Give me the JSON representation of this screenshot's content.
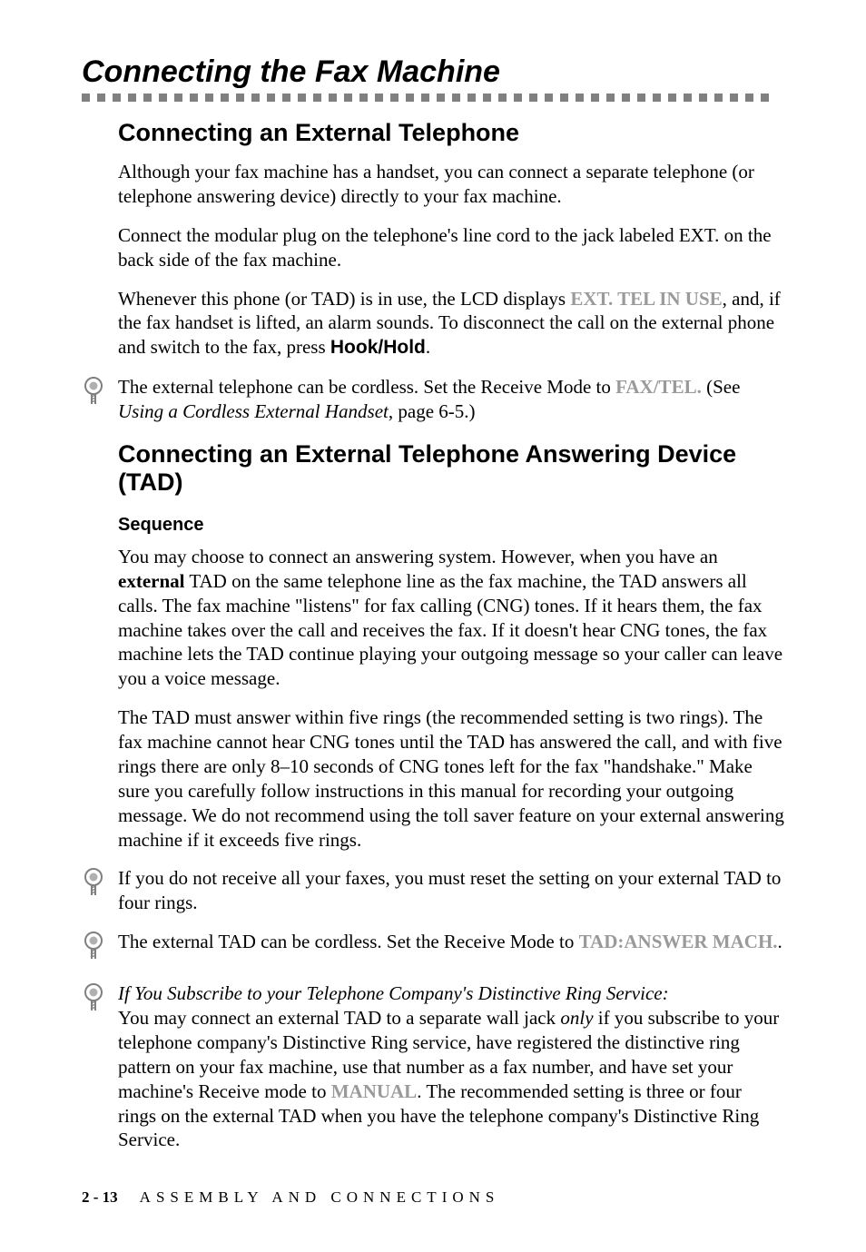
{
  "title": "Connecting the Fax Machine",
  "sections": {
    "ext_tel": {
      "heading": "Connecting an External Telephone",
      "p1": "Although your fax machine has a handset, you can connect a separate telephone (or telephone answering device) directly to your fax machine.",
      "p2": "Connect the modular plug on the telephone's line cord to the jack labeled EXT. on the back side of the fax machine.",
      "p3_a": "Whenever this phone (or TAD) is in use, the LCD displays ",
      "p3_ghost": "EXT. TEL IN USE",
      "p3_b": ", and, if the fax handset is lifted, an alarm sounds. To disconnect the call on the external phone and switch to the fax, press ",
      "p3_bold": "Hook/Hold",
      "p3_c": ".",
      "note_a": "The external telephone can be cordless. Set the Receive Mode to ",
      "note_ghost": "FAX/TEL.",
      "note_b": " (See ",
      "note_i": "Using a Cordless External Handset",
      "note_c": ", page 6-5.)"
    },
    "tad": {
      "heading": "Connecting an External Telephone Answering Device (TAD)",
      "sub": "Sequence",
      "p1_a": "You may choose to connect an answering system. However, when you have an ",
      "p1_bold": "external",
      "p1_b": " TAD on the same telephone line as the fax machine, the TAD answers all calls. The fax machine \"listens\" for fax calling (CNG) tones. If it hears them, the fax machine takes over the call and receives the fax. If it doesn't hear CNG tones, the fax machine lets the TAD continue playing your outgoing message so your caller can leave you a voice message.",
      "p2": "The TAD must answer within five rings (the recommended setting is two rings). The fax machine cannot hear CNG tones until the TAD has answered the call, and with five rings there are only 8–10 seconds of CNG tones left for the fax \"handshake.\"  Make sure you carefully follow instructions in this manual for recording your outgoing message. We do not recommend using the toll saver feature on your external answering machine if it exceeds five rings.",
      "note1": "If you do not receive all your faxes, you must reset the setting on your external TAD to four rings.",
      "note2_a": "The external TAD can be cordless. Set the Receive Mode to ",
      "note2_ghost": "TAD:ANSWER MACH.",
      "note2_b": ".",
      "note3_i": "If You Subscribe to your Telephone Company's Distinctive Ring Service:",
      "note3_a": "You may connect an external TAD to a separate wall jack ",
      "note3_only": "only",
      "note3_b": " if you subscribe to your telephone company's Distinctive Ring service, have registered the distinctive ring pattern on your fax machine, use that number as a fax number, and have set your machine's Receive mode to ",
      "note3_ghost": "MANUAL",
      "note3_c": ". The recommended setting is three or four rings on the external TAD when you have the telephone company's Distinctive Ring Service."
    }
  },
  "footer": {
    "page": "2 - 13",
    "section": "ASSEMBLY AND CONNECTIONS"
  },
  "style": {
    "rule_squares": 45,
    "rule_color": "#808080"
  }
}
